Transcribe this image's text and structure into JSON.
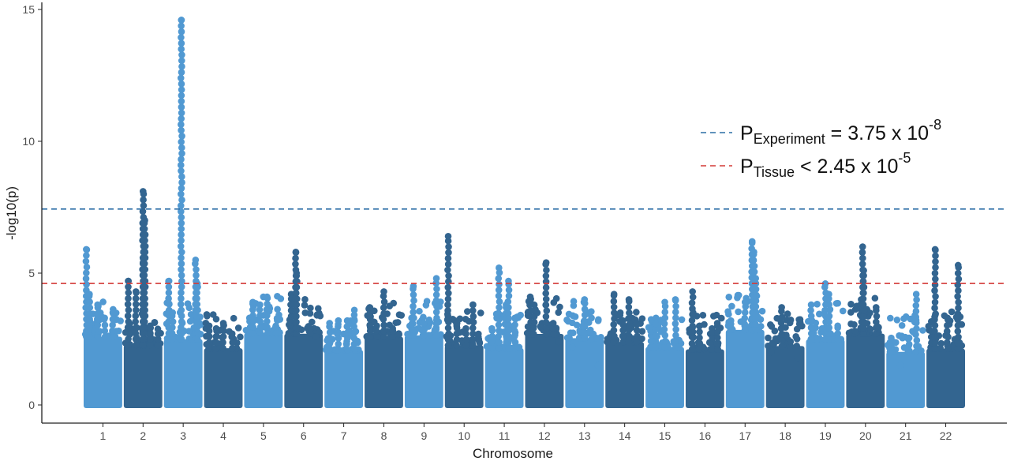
{
  "chart_data": {
    "type": "scatter",
    "xlabel": "Chromosome",
    "ylabel": "-log10(p)",
    "ylim": [
      0,
      15.3
    ],
    "yticks": [
      "0",
      "5",
      "10",
      "15"
    ],
    "grid": false,
    "legend_placement": "top-right",
    "colors": {
      "light": "#5199d2",
      "dark": "#336590"
    },
    "categories": [
      "1",
      "2",
      "3",
      "4",
      "5",
      "6",
      "7",
      "8",
      "9",
      "10",
      "11",
      "12",
      "13",
      "14",
      "15",
      "16",
      "17",
      "18",
      "19",
      "20",
      "21",
      "22"
    ],
    "chromosomes": [
      {
        "label": "1",
        "color": "light",
        "peaks": [
          {
            "pos": 0.03,
            "p": 5.9
          },
          {
            "pos": 0.12,
            "p": 4.2
          },
          {
            "pos": 0.35,
            "p": 3.8
          },
          {
            "pos": 0.55,
            "p": 3.3
          },
          {
            "pos": 0.78,
            "p": 3.5
          }
        ]
      },
      {
        "label": "2",
        "color": "dark",
        "peaks": [
          {
            "pos": 0.08,
            "p": 4.7
          },
          {
            "pos": 0.3,
            "p": 4.3
          },
          {
            "pos": 0.5,
            "p": 8.1
          },
          {
            "pos": 0.55,
            "p": 7.0
          },
          {
            "pos": 0.52,
            "p": 6.2
          },
          {
            "pos": 0.5,
            "p": 5.4
          },
          {
            "pos": 0.7,
            "p": 3.0
          },
          {
            "pos": 0.92,
            "p": 2.7
          }
        ]
      },
      {
        "label": "3",
        "color": "light",
        "peaks": [
          {
            "pos": 0.1,
            "p": 4.7
          },
          {
            "pos": 0.2,
            "p": 3.5
          },
          {
            "pos": 0.45,
            "p": 14.6
          },
          {
            "pos": 0.85,
            "p": 5.5
          },
          {
            "pos": 0.9,
            "p": 4.6
          }
        ]
      },
      {
        "label": "4",
        "color": "dark",
        "peaks": [
          {
            "pos": 0.1,
            "p": 3.0
          },
          {
            "pos": 0.3,
            "p": 2.9
          },
          {
            "pos": 0.5,
            "p": 3.1
          },
          {
            "pos": 0.75,
            "p": 2.7
          }
        ]
      },
      {
        "label": "5",
        "color": "light",
        "peaks": [
          {
            "pos": 0.12,
            "p": 3.3
          },
          {
            "pos": 0.2,
            "p": 3.9
          },
          {
            "pos": 0.4,
            "p": 3.8
          },
          {
            "pos": 0.6,
            "p": 4.1
          },
          {
            "pos": 0.85,
            "p": 3.0
          }
        ]
      },
      {
        "label": "6",
        "color": "dark",
        "peaks": [
          {
            "pos": 0.15,
            "p": 4.2
          },
          {
            "pos": 0.25,
            "p": 4.0
          },
          {
            "pos": 0.28,
            "p": 5.8
          },
          {
            "pos": 0.3,
            "p": 5.0
          },
          {
            "pos": 0.7,
            "p": 2.9
          },
          {
            "pos": 0.85,
            "p": 2.6
          }
        ]
      },
      {
        "label": "7",
        "color": "light",
        "peaks": [
          {
            "pos": 0.1,
            "p": 3.1
          },
          {
            "pos": 0.35,
            "p": 3.2
          },
          {
            "pos": 0.6,
            "p": 3.2
          },
          {
            "pos": 0.8,
            "p": 3.6
          }
        ]
      },
      {
        "label": "8",
        "color": "dark",
        "peaks": [
          {
            "pos": 0.1,
            "p": 3.7
          },
          {
            "pos": 0.3,
            "p": 3.0
          },
          {
            "pos": 0.5,
            "p": 4.3
          },
          {
            "pos": 0.75,
            "p": 2.9
          }
        ]
      },
      {
        "label": "9",
        "color": "light",
        "peaks": [
          {
            "pos": 0.15,
            "p": 3.3
          },
          {
            "pos": 0.2,
            "p": 4.5
          },
          {
            "pos": 0.5,
            "p": 3.1
          },
          {
            "pos": 0.85,
            "p": 4.8
          }
        ]
      },
      {
        "label": "10",
        "color": "dark",
        "peaks": [
          {
            "pos": 0.05,
            "p": 6.4
          },
          {
            "pos": 0.3,
            "p": 3.1
          },
          {
            "pos": 0.55,
            "p": 2.9
          },
          {
            "pos": 0.75,
            "p": 3.8
          }
        ]
      },
      {
        "label": "11",
        "color": "light",
        "peaks": [
          {
            "pos": 0.15,
            "p": 2.9
          },
          {
            "pos": 0.35,
            "p": 5.2
          },
          {
            "pos": 0.55,
            "p": 3.8
          },
          {
            "pos": 0.62,
            "p": 4.7
          },
          {
            "pos": 0.8,
            "p": 3.3
          }
        ]
      },
      {
        "label": "12",
        "color": "dark",
        "peaks": [
          {
            "pos": 0.1,
            "p": 4.1
          },
          {
            "pos": 0.2,
            "p": 3.8
          },
          {
            "pos": 0.55,
            "p": 5.4
          },
          {
            "pos": 0.75,
            "p": 3.1
          },
          {
            "pos": 0.9,
            "p": 2.4
          }
        ]
      },
      {
        "label": "13",
        "color": "light",
        "peaks": [
          {
            "pos": 0.15,
            "p": 2.2
          },
          {
            "pos": 0.45,
            "p": 3.0
          },
          {
            "pos": 0.5,
            "p": 4.0
          },
          {
            "pos": 0.7,
            "p": 2.5
          },
          {
            "pos": 0.88,
            "p": 1.5
          }
        ]
      },
      {
        "label": "14",
        "color": "dark",
        "peaks": [
          {
            "pos": 0.2,
            "p": 4.2
          },
          {
            "pos": 0.45,
            "p": 3.2
          },
          {
            "pos": 0.62,
            "p": 4.0
          },
          {
            "pos": 0.85,
            "p": 3.1
          }
        ]
      },
      {
        "label": "15",
        "color": "light",
        "peaks": [
          {
            "pos": 0.1,
            "p": 2.8
          },
          {
            "pos": 0.25,
            "p": 3.3
          },
          {
            "pos": 0.5,
            "p": 3.9
          },
          {
            "pos": 0.8,
            "p": 4.0
          }
        ]
      },
      {
        "label": "16",
        "color": "dark",
        "peaks": [
          {
            "pos": 0.15,
            "p": 4.3
          },
          {
            "pos": 0.35,
            "p": 3.0
          },
          {
            "pos": 0.7,
            "p": 2.9
          },
          {
            "pos": 0.85,
            "p": 3.1
          }
        ]
      },
      {
        "label": "17",
        "color": "light",
        "peaks": [
          {
            "pos": 0.1,
            "p": 3.2
          },
          {
            "pos": 0.5,
            "p": 3.9
          },
          {
            "pos": 0.7,
            "p": 6.2
          },
          {
            "pos": 0.75,
            "p": 5.8
          },
          {
            "pos": 0.8,
            "p": 4.8
          }
        ]
      },
      {
        "label": "18",
        "color": "dark",
        "peaks": [
          {
            "pos": 0.1,
            "p": 2.0
          },
          {
            "pos": 0.4,
            "p": 3.7
          },
          {
            "pos": 0.65,
            "p": 2.4
          },
          {
            "pos": 0.85,
            "p": 1.8
          }
        ]
      },
      {
        "label": "19",
        "color": "light",
        "peaks": [
          {
            "pos": 0.1,
            "p": 3.8
          },
          {
            "pos": 0.5,
            "p": 4.6
          },
          {
            "pos": 0.6,
            "p": 4.2
          },
          {
            "pos": 0.85,
            "p": 3.0
          }
        ]
      },
      {
        "label": "20",
        "color": "dark",
        "peaks": [
          {
            "pos": 0.2,
            "p": 2.8
          },
          {
            "pos": 0.38,
            "p": 4.0
          },
          {
            "pos": 0.42,
            "p": 6.0
          },
          {
            "pos": 0.45,
            "p": 5.1
          },
          {
            "pos": 0.8,
            "p": 3.7
          }
        ]
      },
      {
        "label": "21",
        "color": "light",
        "peaks": [
          {
            "pos": 0.1,
            "p": 2.2
          },
          {
            "pos": 0.35,
            "p": 1.5
          },
          {
            "pos": 0.6,
            "p": 2.3
          },
          {
            "pos": 0.8,
            "p": 4.2
          }
        ]
      },
      {
        "label": "22",
        "color": "dark",
        "peaks": [
          {
            "pos": 0.1,
            "p": 2.8
          },
          {
            "pos": 0.2,
            "p": 5.9
          },
          {
            "pos": 0.55,
            "p": 3.3
          },
          {
            "pos": 0.85,
            "p": 5.3
          }
        ]
      }
    ],
    "thresholds": [
      {
        "name": "Experiment",
        "value": 7.43,
        "color": "#2c6ea6",
        "label_main": "P",
        "label_sub": "Experiment",
        "label_rest": " = 3.75 x 10",
        "label_exp": "-8"
      },
      {
        "name": "Tissue",
        "value": 4.61,
        "color": "#d43a37",
        "label_main": "P",
        "label_sub": "Tissue",
        "label_rest": " < 2.45 x 10",
        "label_exp": "-5"
      }
    ]
  }
}
